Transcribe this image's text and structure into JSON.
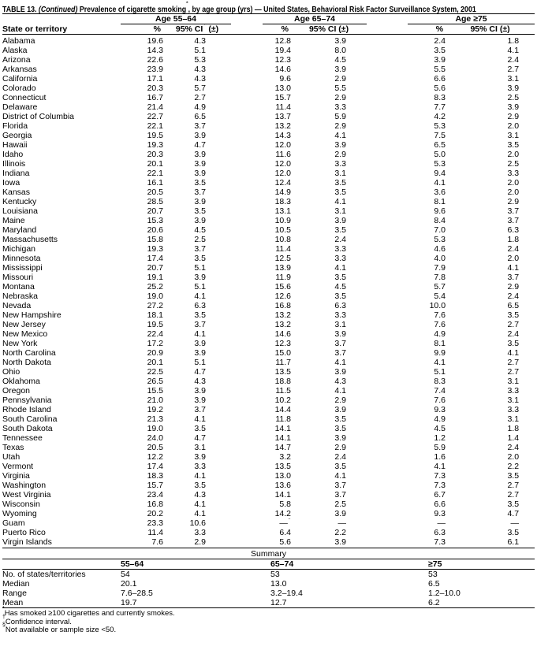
{
  "title": {
    "prefix": "TABLE 13. ",
    "continued": "(Continued)",
    "main": " Prevalence of cigarette smoking",
    "marker": "*",
    "rest": ", by age group (yrs) — United States, Behavioral Risk Factor Surveillance System, 2001"
  },
  "columns": {
    "state": "State or territory",
    "groups": [
      "Age 55–64",
      "Age 65–74",
      "Age ≥75"
    ],
    "pct": "%",
    "ci_pre": "95% CI",
    "ci_marker": "†",
    "ci_post": " (±)"
  },
  "table": {
    "rows": [
      {
        "state": "Alabama",
        "values": [
          "19.6",
          "4.3",
          "12.8",
          "3.9",
          "2.4",
          "1.8"
        ]
      },
      {
        "state": "Alaska",
        "values": [
          "14.3",
          "5.1",
          "19.4",
          "8.0",
          "3.5",
          "4.1"
        ]
      },
      {
        "state": "Arizona",
        "values": [
          "22.6",
          "5.3",
          "12.3",
          "4.5",
          "3.9",
          "2.4"
        ]
      },
      {
        "state": "Arkansas",
        "values": [
          "23.9",
          "4.3",
          "14.6",
          "3.9",
          "5.5",
          "2.7"
        ]
      },
      {
        "state": "California",
        "values": [
          "17.1",
          "4.3",
          "9.6",
          "2.9",
          "6.6",
          "3.1"
        ]
      },
      {
        "state": "Colorado",
        "values": [
          "20.3",
          "5.7",
          "13.0",
          "5.5",
          "5.6",
          "3.9"
        ]
      },
      {
        "state": "Connecticut",
        "values": [
          "16.7",
          "2.7",
          "15.7",
          "2.9",
          "8.3",
          "2.5"
        ]
      },
      {
        "state": "Delaware",
        "values": [
          "21.4",
          "4.9",
          "11.4",
          "3.3",
          "7.7",
          "3.9"
        ]
      },
      {
        "state": "District of Columbia",
        "values": [
          "22.7",
          "6.5",
          "13.7",
          "5.9",
          "4.2",
          "2.9"
        ]
      },
      {
        "state": "Florida",
        "values": [
          "22.1",
          "3.7",
          "13.2",
          "2.9",
          "5.3",
          "2.0"
        ]
      },
      {
        "state": "Georgia",
        "values": [
          "19.5",
          "3.9",
          "14.3",
          "4.1",
          "7.5",
          "3.1"
        ]
      },
      {
        "state": "Hawaii",
        "values": [
          "19.3",
          "4.7",
          "12.0",
          "3.9",
          "6.5",
          "3.5"
        ]
      },
      {
        "state": "Idaho",
        "values": [
          "20.3",
          "3.9",
          "11.6",
          "2.9",
          "5.0",
          "2.0"
        ]
      },
      {
        "state": "Illinois",
        "values": [
          "20.1",
          "3.9",
          "12.0",
          "3.3",
          "5.3",
          "2.5"
        ]
      },
      {
        "state": "Indiana",
        "values": [
          "22.1",
          "3.9",
          "12.0",
          "3.1",
          "9.4",
          "3.3"
        ]
      },
      {
        "state": "Iowa",
        "values": [
          "16.1",
          "3.5",
          "12.4",
          "3.5",
          "4.1",
          "2.0"
        ]
      },
      {
        "state": "Kansas",
        "values": [
          "20.5",
          "3.7",
          "14.9",
          "3.5",
          "3.6",
          "2.0"
        ]
      },
      {
        "state": "Kentucky",
        "values": [
          "28.5",
          "3.9",
          "18.3",
          "4.1",
          "8.1",
          "2.9"
        ]
      },
      {
        "state": "Louisiana",
        "values": [
          "20.7",
          "3.5",
          "13.1",
          "3.1",
          "9.6",
          "3.7"
        ]
      },
      {
        "state": "Maine",
        "values": [
          "15.3",
          "3.9",
          "10.9",
          "3.9",
          "8.4",
          "3.7"
        ]
      },
      {
        "state": "Maryland",
        "values": [
          "20.6",
          "4.5",
          "10.5",
          "3.5",
          "7.0",
          "6.3"
        ]
      },
      {
        "state": "Massachusetts",
        "values": [
          "15.8",
          "2.5",
          "10.8",
          "2.4",
          "5.3",
          "1.8"
        ]
      },
      {
        "state": "Michigan",
        "values": [
          "19.3",
          "3.7",
          "11.4",
          "3.3",
          "4.6",
          "2.4"
        ]
      },
      {
        "state": "Minnesota",
        "values": [
          "17.4",
          "3.5",
          "12.5",
          "3.3",
          "4.0",
          "2.0"
        ]
      },
      {
        "state": "Mississippi",
        "values": [
          "20.7",
          "5.1",
          "13.9",
          "4.1",
          "7.9",
          "4.1"
        ]
      },
      {
        "state": "Missouri",
        "values": [
          "19.1",
          "3.9",
          "11.9",
          "3.5",
          "7.8",
          "3.7"
        ]
      },
      {
        "state": "Montana",
        "values": [
          "25.2",
          "5.1",
          "15.6",
          "4.5",
          "5.7",
          "2.9"
        ]
      },
      {
        "state": "Nebraska",
        "values": [
          "19.0",
          "4.1",
          "12.6",
          "3.5",
          "5.4",
          "2.4"
        ]
      },
      {
        "state": "Nevada",
        "values": [
          "27.2",
          "6.3",
          "16.8",
          "6.3",
          "10.0",
          "6.5"
        ]
      },
      {
        "state": "New Hampshire",
        "values": [
          "18.1",
          "3.5",
          "13.2",
          "3.3",
          "7.6",
          "3.5"
        ]
      },
      {
        "state": "New Jersey",
        "values": [
          "19.5",
          "3.7",
          "13.2",
          "3.1",
          "7.6",
          "2.7"
        ]
      },
      {
        "state": "New Mexico",
        "values": [
          "22.4",
          "4.1",
          "14.6",
          "3.9",
          "4.9",
          "2.4"
        ]
      },
      {
        "state": "New York",
        "values": [
          "17.2",
          "3.9",
          "12.3",
          "3.7",
          "8.1",
          "3.5"
        ]
      },
      {
        "state": "North Carolina",
        "values": [
          "20.9",
          "3.9",
          "15.0",
          "3.7",
          "9.9",
          "4.1"
        ]
      },
      {
        "state": "North Dakota",
        "values": [
          "20.1",
          "5.1",
          "11.7",
          "4.1",
          "4.1",
          "2.7"
        ]
      },
      {
        "state": "Ohio",
        "values": [
          "22.5",
          "4.7",
          "13.5",
          "3.9",
          "5.1",
          "2.7"
        ]
      },
      {
        "state": "Oklahoma",
        "values": [
          "26.5",
          "4.3",
          "18.8",
          "4.3",
          "8.3",
          "3.1"
        ]
      },
      {
        "state": "Oregon",
        "values": [
          "15.5",
          "3.9",
          "11.5",
          "4.1",
          "7.4",
          "3.3"
        ]
      },
      {
        "state": "Pennsylvania",
        "values": [
          "21.0",
          "3.9",
          "10.2",
          "2.9",
          "7.6",
          "3.1"
        ]
      },
      {
        "state": "Rhode Island",
        "values": [
          "19.2",
          "3.7",
          "14.4",
          "3.9",
          "9.3",
          "3.3"
        ]
      },
      {
        "state": "South Carolina",
        "values": [
          "21.3",
          "4.1",
          "11.8",
          "3.5",
          "4.9",
          "3.1"
        ]
      },
      {
        "state": "South Dakota",
        "values": [
          "19.0",
          "3.5",
          "14.1",
          "3.5",
          "4.5",
          "1.8"
        ]
      },
      {
        "state": "Tennessee",
        "values": [
          "24.0",
          "4.7",
          "14.1",
          "3.9",
          "1.2",
          "1.4"
        ]
      },
      {
        "state": "Texas",
        "values": [
          "20.5",
          "3.1",
          "14.7",
          "2.9",
          "5.9",
          "2.4"
        ]
      },
      {
        "state": "Utah",
        "values": [
          "12.2",
          "3.9",
          "3.2",
          "2.4",
          "1.6",
          "2.0"
        ]
      },
      {
        "state": "Vermont",
        "values": [
          "17.4",
          "3.3",
          "13.5",
          "3.5",
          "4.1",
          "2.2"
        ]
      },
      {
        "state": "Virginia",
        "values": [
          "18.3",
          "4.1",
          "13.0",
          "4.1",
          "7.3",
          "3.5"
        ]
      },
      {
        "state": "Washington",
        "values": [
          "15.7",
          "3.5",
          "13.6",
          "3.7",
          "7.3",
          "2.7"
        ]
      },
      {
        "state": "West Virginia",
        "values": [
          "23.4",
          "4.3",
          "14.1",
          "3.7",
          "6.7",
          "2.7"
        ]
      },
      {
        "state": "Wisconsin",
        "values": [
          "16.8",
          "4.1",
          "5.8",
          "2.5",
          "6.6",
          "3.5"
        ]
      },
      {
        "state": "Wyoming",
        "values": [
          "20.2",
          "4.1",
          "14.2",
          "3.9",
          "9.3",
          "4.7"
        ]
      },
      {
        "state": "Guam",
        "values": [
          "23.3",
          "10.6",
          "—§",
          "—",
          "—",
          "—"
        ]
      },
      {
        "state": "Puerto Rico",
        "values": [
          "11.4",
          "3.3",
          "6.4",
          "2.2",
          "6.3",
          "3.5"
        ]
      },
      {
        "state": "Virgin Islands",
        "values": [
          "7.6",
          "2.9",
          "5.6",
          "3.9",
          "7.3",
          "6.1"
        ]
      }
    ]
  },
  "summary": {
    "title": "Summary",
    "headers": [
      "55–64",
      "65–74",
      "≥75"
    ],
    "rows": [
      {
        "label": "No. of states/territories",
        "values": [
          "54",
          "53",
          "53"
        ]
      },
      {
        "label": "Median",
        "values": [
          "20.1",
          "13.0",
          "6.5"
        ]
      },
      {
        "label": "Range",
        "values": [
          "7.6–28.5",
          "3.2–19.4",
          "1.2–10.0"
        ]
      },
      {
        "label": "Mean",
        "values": [
          "19.7",
          "12.7",
          "6.2"
        ]
      }
    ]
  },
  "footnotes": [
    {
      "marker": "*",
      "text": "Has smoked ≥100 cigarettes and currently smokes."
    },
    {
      "marker": "†",
      "text": "Confidence interval."
    },
    {
      "marker": "§",
      "text": "Not available or sample size <50."
    }
  ]
}
